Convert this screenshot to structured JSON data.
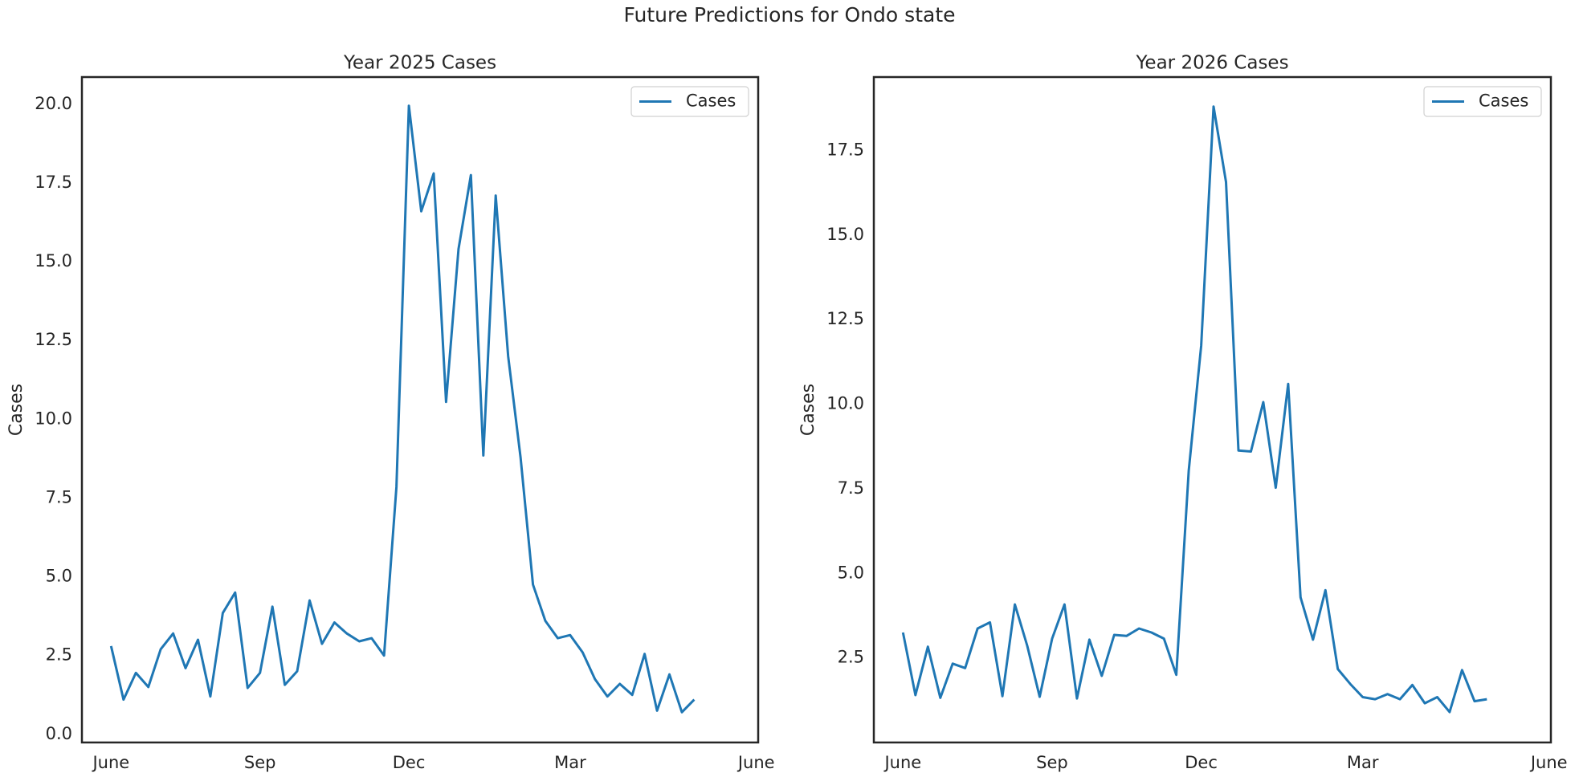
{
  "title": "Future Predictions for Ondo state",
  "chart_data": [
    {
      "type": "line",
      "title": "Year 2025 Cases",
      "y_label": "Cases",
      "x": [
        0,
        1,
        2,
        3,
        4,
        5,
        6,
        7,
        8,
        9,
        10,
        11,
        12,
        13,
        14,
        15,
        16,
        17,
        18,
        19,
        20,
        21,
        22,
        23,
        24,
        25,
        26,
        27,
        28,
        29,
        30,
        31,
        32,
        33,
        34,
        35,
        36,
        37,
        38,
        39,
        40,
        41,
        42,
        43,
        44,
        45,
        46,
        47
      ],
      "xlim": [
        -2.35,
        52.15
      ],
      "xticks": [
        {
          "value": 0,
          "label": "June"
        },
        {
          "value": 12,
          "label": "Sep"
        },
        {
          "value": 24,
          "label": "Dec"
        },
        {
          "value": 37,
          "label": "Mar"
        },
        {
          "value": 52,
          "label": "June"
        }
      ],
      "ylim": [
        -0.26,
        20.86
      ],
      "yticks": [
        {
          "value": 0,
          "label": "0.0"
        },
        2.5,
        {
          "value": 5,
          "label": "5.0"
        },
        7.5,
        {
          "value": 10,
          "label": "10.0"
        },
        12.5,
        {
          "value": 15,
          "label": "15.0"
        },
        17.5,
        {
          "value": 20,
          "label": "20.0"
        }
      ],
      "legend": "upper right",
      "series": [
        {
          "name": "Cases",
          "color": "#1f77b4",
          "values": [
            2.8,
            1.1,
            1.95,
            1.5,
            2.7,
            3.2,
            2.1,
            3.0,
            1.2,
            3.85,
            4.5,
            1.47,
            1.95,
            4.05,
            1.57,
            2.0,
            4.25,
            2.87,
            3.55,
            3.2,
            2.95,
            3.05,
            2.5,
            7.85,
            19.95,
            16.6,
            17.8,
            10.55,
            15.4,
            17.75,
            8.85,
            17.1,
            12.0,
            8.8,
            4.75,
            3.6,
            3.05,
            3.15,
            2.6,
            1.75,
            1.2,
            1.6,
            1.25,
            2.55,
            0.75,
            1.9,
            0.7,
            1.1
          ]
        }
      ]
    },
    {
      "type": "line",
      "title": "Year 2026 Cases",
      "y_label": "Cases",
      "x": [
        0,
        1,
        2,
        3,
        4,
        5,
        6,
        7,
        8,
        9,
        10,
        11,
        12,
        13,
        14,
        15,
        16,
        17,
        18,
        19,
        20,
        21,
        22,
        23,
        24,
        25,
        26,
        27,
        28,
        29,
        30,
        31,
        32,
        33,
        34,
        35,
        36,
        37,
        38,
        39,
        40,
        41,
        42,
        43,
        44,
        45,
        46,
        47
      ],
      "xlim": [
        -2.35,
        52.15
      ],
      "xticks": [
        {
          "value": 0,
          "label": "June"
        },
        {
          "value": 12,
          "label": "Sep"
        },
        {
          "value": 24,
          "label": "Dec"
        },
        {
          "value": 37,
          "label": "Mar"
        },
        {
          "value": 52,
          "label": "June"
        }
      ],
      "ylim": [
        0,
        19.67
      ],
      "yticks": [
        2.5,
        {
          "value": 5,
          "label": "5.0"
        },
        7.5,
        {
          "value": 10,
          "label": "10.0"
        },
        12.5,
        {
          "value": 15,
          "label": "15.0"
        },
        17.5
      ],
      "legend": "upper right",
      "series": [
        {
          "name": "Cases",
          "color": "#1f77b4",
          "values": [
            3.25,
            1.4,
            2.83,
            1.32,
            2.33,
            2.2,
            3.37,
            3.55,
            1.37,
            4.08,
            2.86,
            1.35,
            3.07,
            4.08,
            1.3,
            3.04,
            1.97,
            3.18,
            3.15,
            3.37,
            3.25,
            3.07,
            2.0,
            8.04,
            11.73,
            18.8,
            16.57,
            8.63,
            8.6,
            10.06,
            7.53,
            10.6,
            4.29,
            3.04,
            4.5,
            2.17,
            1.73,
            1.34,
            1.28,
            1.43,
            1.28,
            1.7,
            1.16,
            1.34,
            0.9,
            2.14,
            1.22,
            1.28
          ]
        }
      ]
    }
  ]
}
